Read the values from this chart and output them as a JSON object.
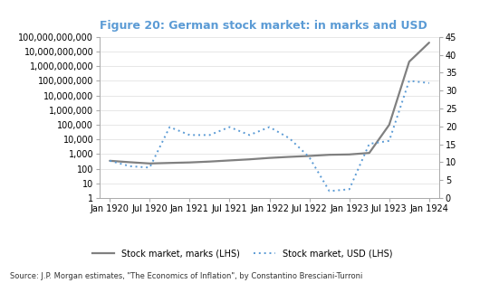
{
  "title": "Figure 20: German stock market: in marks and USD",
  "title_color": "#5B9BD5",
  "source_text": "Source: J.P. Morgan estimates, \"The Economics of Inflation\", by Constantino Bresciani-Turroni",
  "x_labels": [
    "Jan 1920",
    "Jul 1920",
    "Jan 1921",
    "Jul 1921",
    "Jan 1922",
    "Jul 1922",
    "Jan 1923",
    "Jul 1923",
    "Jan 1924"
  ],
  "x_tick_positions": [
    0,
    2,
    4,
    6,
    8,
    10,
    12,
    14,
    16
  ],
  "marks_x": [
    0,
    1,
    2,
    3,
    4,
    5,
    6,
    7,
    8,
    9,
    10,
    11,
    12,
    13,
    14,
    15,
    16
  ],
  "marks_y": [
    350,
    280,
    230,
    250,
    270,
    310,
    370,
    440,
    550,
    650,
    750,
    900,
    950,
    1200,
    100000,
    2000000000,
    40000000000
  ],
  "usd_x": [
    0,
    1,
    2,
    3,
    4,
    5,
    6,
    7,
    8,
    9,
    10,
    11,
    12,
    13,
    14,
    15,
    16
  ],
  "usd_y": [
    350,
    150,
    120,
    70000,
    20000,
    20000,
    70000,
    20000,
    70000,
    12000,
    600,
    3,
    4,
    5000,
    8000,
    100000000,
    70000000
  ],
  "marks_color": "#808080",
  "usd_color": "#5B9BD5",
  "legend_marks": "Stock market, marks (LHS)",
  "legend_usd": "Stock market, USD (LHS)",
  "log_ticks": [
    1,
    10,
    100,
    1000,
    10000,
    100000,
    1000000,
    10000000,
    100000000,
    1000000000,
    10000000000,
    100000000000
  ],
  "log_labels": [
    "1",
    "10",
    "100",
    "1,000",
    "10,000",
    "100,000",
    "1,000,000",
    "10,000,000",
    "100,000,000",
    "1,000,000,000",
    "10,000,000,000",
    "100,000,000,000"
  ],
  "ylim_left": [
    1,
    100000000000
  ],
  "ylim_right": [
    0,
    45
  ],
  "right_ticks": [
    0,
    5,
    10,
    15,
    20,
    25,
    30,
    35,
    40,
    45
  ],
  "background_color": "#ffffff"
}
